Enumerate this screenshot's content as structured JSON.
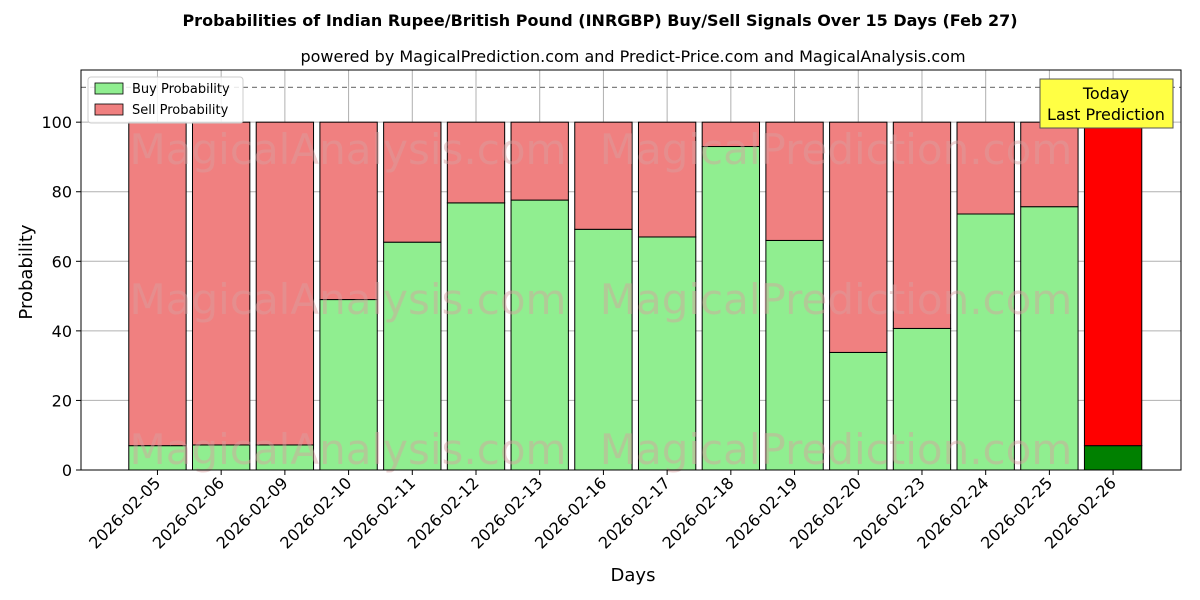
{
  "chart_data": {
    "type": "bar",
    "stacked": true,
    "title": "Probabilities of Indian Rupee/British Pound (INRGBP) Buy/Sell Signals Over 15 Days (Feb 27)",
    "subtitle": "powered by MagicalPrediction.com and Predict-Price.com and MagicalAnalysis.com",
    "xlabel": "Days",
    "ylabel": "Probability",
    "ylim": [
      0,
      115
    ],
    "yticks": [
      0,
      20,
      40,
      60,
      80,
      100
    ],
    "reference_line": 110,
    "grid": true,
    "legend_position": "top-left",
    "categories": [
      "2026-02-05",
      "2026-02-06",
      "2026-02-09",
      "2026-02-10",
      "2026-02-11",
      "2026-02-12",
      "2026-02-13",
      "2026-02-16",
      "2026-02-17",
      "2026-02-18",
      "2026-02-19",
      "2026-02-20",
      "2026-02-23",
      "2026-02-24",
      "2026-02-25",
      "2026-02-26"
    ],
    "series": [
      {
        "name": "Buy Probability",
        "color": "#90ee90",
        "values": [
          7,
          7.2,
          7.2,
          49,
          65.5,
          76.8,
          77.6,
          69.2,
          67,
          93,
          66,
          33.8,
          40.7,
          73.6,
          75.7,
          7
        ]
      },
      {
        "name": "Sell Probability",
        "color": "#f08080",
        "values": [
          93,
          92.8,
          92.8,
          51,
          34.5,
          23.2,
          22.4,
          30.8,
          33,
          7,
          34,
          66.2,
          59.3,
          26.4,
          24.3,
          93
        ]
      }
    ],
    "highlight": {
      "index": 15,
      "buy_color": "#008000",
      "sell_color": "#ff0000"
    },
    "annotation": {
      "line1": "Today",
      "line2": "Last Prediction",
      "position": "top-right",
      "color": "#ffff44"
    },
    "watermarks": [
      "MagicalAnalysis.com",
      "MagicalPrediction.com"
    ]
  }
}
